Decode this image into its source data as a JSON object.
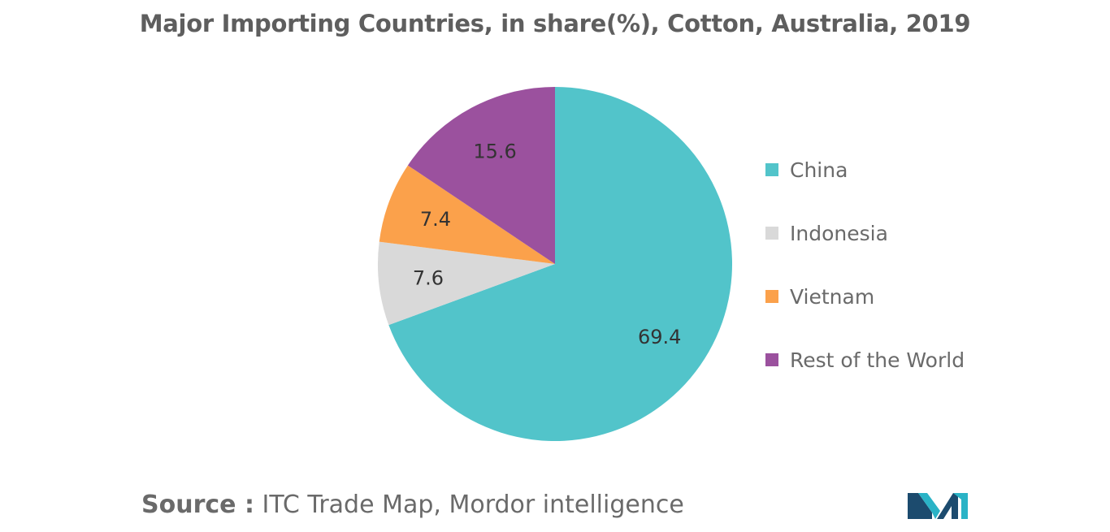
{
  "title": "Major Importing Countries, in share(%), Cotton, Australia, 2019",
  "source": {
    "label": "Source :",
    "text": "ITC Trade Map, Mordor intelligence"
  },
  "logo": {
    "icon": "mordor-intelligence-logo-icon",
    "colors": [
      "#1c4b6e",
      "#2ab3c6"
    ]
  },
  "chart_data": {
    "type": "pie",
    "slices": [
      {
        "name": "China",
        "value": 69.4,
        "label": "69.4",
        "color": "#52c4ca"
      },
      {
        "name": "Indonesia",
        "value": 7.6,
        "label": "7.6",
        "color": "#d9d9d9"
      },
      {
        "name": "Vietnam",
        "value": 7.4,
        "label": "7.4",
        "color": "#fba14b"
      },
      {
        "name": "Rest of the World",
        "value": 15.6,
        "label": "15.6",
        "color": "#9b519e"
      }
    ],
    "start": "12 o'clock",
    "direction": "clockwise",
    "legend_position": "right"
  }
}
